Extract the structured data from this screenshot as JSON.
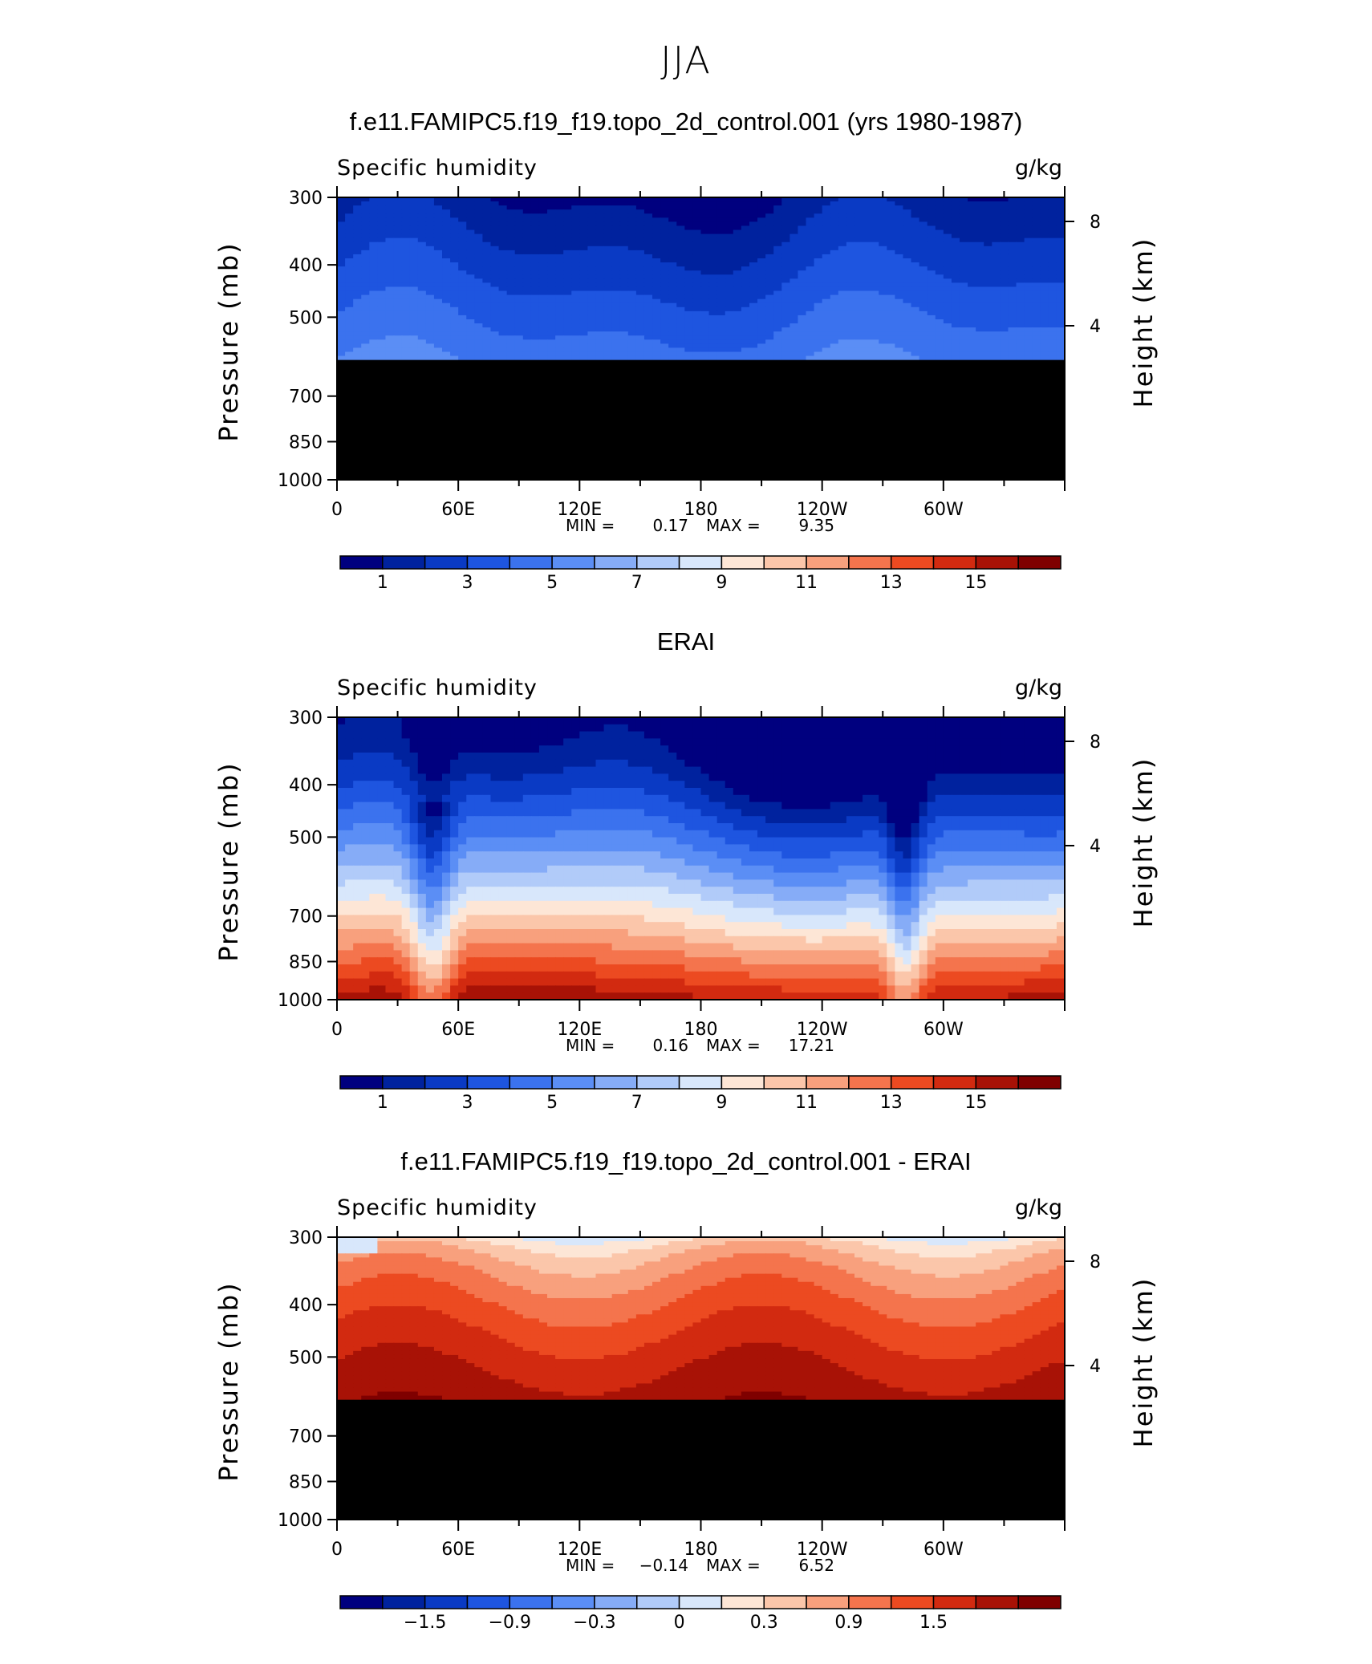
{
  "figure": {
    "title": "JJA"
  },
  "colors": {
    "main": [
      "#00007f",
      "#00229e",
      "#0a3ac4",
      "#1e55e0",
      "#3b72ee",
      "#5b8ef5",
      "#86acf7",
      "#b1cbf9",
      "#d8e7fb",
      "#fde6d6",
      "#fbc6aa",
      "#f8a07d",
      "#f4744d",
      "#ec4a21",
      "#d22a10",
      "#a81206",
      "#7f0000"
    ],
    "terrain": "#000000"
  },
  "chart_data": [
    {
      "type": "heatmap",
      "title": "f.e11.FAMIPC5.f19_f19.topo_2d_control.001 (yrs 1980-1987)",
      "left_label": "Specific humidity",
      "right_label": "g/kg",
      "ylabel": "Pressure (mb)",
      "y2label": "Height (km)",
      "x_ticks": [
        "0",
        "60E",
        "120E",
        "180",
        "120W",
        "60W"
      ],
      "y_ticks": [
        "300",
        "400",
        "500",
        "700",
        "850",
        "1000"
      ],
      "y2_ticks": [
        "8",
        "4"
      ],
      "ylim": [
        1000,
        300
      ],
      "min_label": "MIN =",
      "min_value": "0.17",
      "max_label": "MAX =",
      "max_value": "9.35",
      "colorbar_labels": [
        "1",
        "3",
        "5",
        "7",
        "9",
        "11",
        "13",
        "15"
      ],
      "data_bottom_mb": 600,
      "profile": [
        200,
        220,
        230,
        220,
        180,
        160,
        160,
        160,
        170,
        180,
        200,
        200,
        200,
        180,
        160,
        160,
        120,
        120,
        100,
        80,
        80,
        60,
        60,
        60,
        60,
        60,
        60,
        80,
        80,
        80,
        100,
        140,
        160,
        160,
        180,
        220,
        240,
        240,
        240,
        220,
        200,
        180,
        180,
        180,
        180,
        120,
        110,
        100,
        140,
        160,
        200,
        240,
        260,
        280,
        300,
        300,
        320,
        320,
        340,
        380
      ],
      "plevs": [
        300,
        400,
        500,
        600
      ]
    },
    {
      "type": "heatmap",
      "title": "ERAI",
      "left_label": "Specific humidity",
      "right_label": "g/kg",
      "ylabel": "Pressure (mb)",
      "y2label": "Height (km)",
      "x_ticks": [
        "0",
        "60E",
        "120E",
        "180",
        "120W",
        "60W"
      ],
      "y_ticks": [
        "300",
        "400",
        "500",
        "700",
        "850",
        "1000"
      ],
      "y2_ticks": [
        "8",
        "4"
      ],
      "ylim": [
        1000,
        300
      ],
      "min_label": "MIN =",
      "min_value": "0.16",
      "max_label": "MAX =",
      "max_value": "17.21",
      "colorbar_labels": [
        "1",
        "3",
        "5",
        "7",
        "9",
        "11",
        "13",
        "15"
      ],
      "data_bottom_mb": 1000,
      "plevs": [
        300,
        400,
        500,
        700,
        850,
        1000
      ]
    },
    {
      "type": "heatmap",
      "title": "f.e11.FAMIPC5.f19_f19.topo_2d_control.001 - ERAI",
      "left_label": "Specific humidity",
      "right_label": "g/kg",
      "ylabel": "Pressure (mb)",
      "y2label": "Height (km)",
      "x_ticks": [
        "0",
        "60E",
        "120E",
        "180",
        "120W",
        "60W"
      ],
      "y_ticks": [
        "300",
        "400",
        "500",
        "700",
        "850",
        "1000"
      ],
      "y2_ticks": [
        "8",
        "4"
      ],
      "ylim": [
        1000,
        300
      ],
      "min_label": "MIN =",
      "min_value": "−0.14",
      "max_label": "MAX =",
      "max_value": "6.52",
      "colorbar_labels": [
        "−1.5",
        "−0.9",
        "−0.3",
        "0",
        "0.3",
        "0.9",
        "1.5"
      ],
      "data_bottom_mb": 600,
      "plevs": [
        300,
        400,
        500,
        600
      ]
    }
  ]
}
